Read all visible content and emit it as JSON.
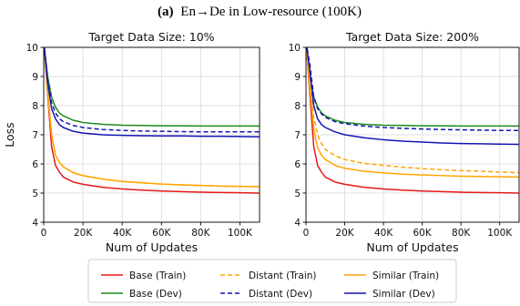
{
  "figure": {
    "caption_label": "(a)",
    "caption_text": "En→De in Low-resource (100K)"
  },
  "chart_data": [
    {
      "type": "line",
      "title": "Target Data Size: 10%",
      "xlabel": "Num of Updates",
      "ylabel": "Loss",
      "xlim": [
        0,
        110000
      ],
      "ylim": [
        4,
        10
      ],
      "xticks": [
        0,
        20000,
        40000,
        60000,
        80000,
        100000
      ],
      "xtick_labels": [
        "0",
        "20K",
        "40K",
        "60K",
        "80K",
        "100K"
      ],
      "yticks": [
        4,
        5,
        6,
        7,
        8,
        9,
        10
      ],
      "ytick_labels": [
        "4",
        "5",
        "6",
        "7",
        "8",
        "9",
        "10"
      ],
      "grid": true,
      "series": [
        {
          "name": "Base (Train)",
          "color": "#e41a1c",
          "dash": "solid",
          "x": [
            0,
            2000,
            4000,
            6000,
            8000,
            10000,
            15000,
            20000,
            30000,
            40000,
            50000,
            60000,
            70000,
            80000,
            90000,
            100000,
            110000
          ],
          "y": [
            10.2,
            8.4,
            6.6,
            5.95,
            5.72,
            5.55,
            5.38,
            5.3,
            5.2,
            5.14,
            5.1,
            5.07,
            5.05,
            5.03,
            5.02,
            5.01,
            5.0
          ]
        },
        {
          "name": "Base (Dev)",
          "color": "#1a8a1a",
          "dash": "solid",
          "x": [
            0,
            2000,
            4000,
            6000,
            8000,
            10000,
            15000,
            20000,
            30000,
            40000,
            50000,
            60000,
            70000,
            80000,
            90000,
            100000,
            110000
          ],
          "y": [
            10.2,
            9.0,
            8.3,
            7.95,
            7.75,
            7.65,
            7.5,
            7.42,
            7.36,
            7.33,
            7.32,
            7.31,
            7.31,
            7.3,
            7.3,
            7.3,
            7.3
          ]
        },
        {
          "name": "Distant (Train)",
          "color": "#ffa500",
          "dash": "dashed",
          "x": [
            0,
            2000,
            4000,
            6000,
            8000,
            10000,
            15000,
            20000,
            30000,
            40000,
            50000,
            60000,
            70000,
            80000,
            90000,
            100000,
            110000
          ],
          "y": [
            10.2,
            8.5,
            7.0,
            6.3,
            6.05,
            5.9,
            5.7,
            5.6,
            5.48,
            5.4,
            5.35,
            5.31,
            5.28,
            5.26,
            5.24,
            5.23,
            5.22
          ]
        },
        {
          "name": "Distant (Dev)",
          "color": "#1414b4",
          "dash": "dashed",
          "x": [
            0,
            2000,
            4000,
            6000,
            8000,
            10000,
            15000,
            20000,
            30000,
            40000,
            50000,
            60000,
            70000,
            80000,
            90000,
            100000,
            110000
          ],
          "y": [
            10.2,
            8.9,
            8.1,
            7.75,
            7.55,
            7.45,
            7.32,
            7.25,
            7.18,
            7.15,
            7.13,
            7.12,
            7.11,
            7.1,
            7.1,
            7.1,
            7.1
          ]
        },
        {
          "name": "Similar (Train)",
          "color": "#ffa500",
          "dash": "solid",
          "x": [
            0,
            2000,
            4000,
            6000,
            8000,
            10000,
            15000,
            20000,
            30000,
            40000,
            50000,
            60000,
            70000,
            80000,
            90000,
            100000,
            110000
          ],
          "y": [
            10.2,
            8.5,
            7.0,
            6.3,
            6.05,
            5.9,
            5.7,
            5.6,
            5.48,
            5.4,
            5.35,
            5.31,
            5.28,
            5.26,
            5.24,
            5.23,
            5.22
          ]
        },
        {
          "name": "Similar (Dev)",
          "color": "#1414b4",
          "dash": "solid",
          "x": [
            0,
            2000,
            4000,
            6000,
            8000,
            10000,
            15000,
            20000,
            30000,
            40000,
            50000,
            60000,
            70000,
            80000,
            90000,
            100000,
            110000
          ],
          "y": [
            10.2,
            8.8,
            7.9,
            7.55,
            7.35,
            7.25,
            7.12,
            7.06,
            7.0,
            6.98,
            6.97,
            6.96,
            6.96,
            6.95,
            6.95,
            6.94,
            6.93
          ]
        }
      ]
    },
    {
      "type": "line",
      "title": "Target Data Size: 200%",
      "xlabel": "Num of Updates",
      "ylabel": "",
      "xlim": [
        0,
        110000
      ],
      "ylim": [
        4,
        10
      ],
      "xticks": [
        0,
        20000,
        40000,
        60000,
        80000,
        100000
      ],
      "xtick_labels": [
        "0",
        "20K",
        "40K",
        "60K",
        "80K",
        "100K"
      ],
      "yticks": [
        4,
        5,
        6,
        7,
        8,
        9,
        10
      ],
      "ytick_labels": [
        "4",
        "5",
        "6",
        "7",
        "8",
        "9",
        "10"
      ],
      "grid": true,
      "series": [
        {
          "name": "Base (Train)",
          "color": "#e41a1c",
          "dash": "solid",
          "x": [
            0,
            2000,
            4000,
            6000,
            8000,
            10000,
            15000,
            20000,
            30000,
            40000,
            50000,
            60000,
            70000,
            80000,
            90000,
            100000,
            110000
          ],
          "y": [
            10.2,
            8.4,
            6.6,
            5.95,
            5.72,
            5.55,
            5.38,
            5.3,
            5.2,
            5.14,
            5.1,
            5.07,
            5.05,
            5.03,
            5.02,
            5.01,
            5.0
          ]
        },
        {
          "name": "Base (Dev)",
          "color": "#1a8a1a",
          "dash": "solid",
          "x": [
            0,
            2000,
            4000,
            6000,
            8000,
            10000,
            15000,
            20000,
            30000,
            40000,
            50000,
            60000,
            70000,
            80000,
            90000,
            100000,
            110000
          ],
          "y": [
            10.2,
            9.0,
            8.3,
            7.95,
            7.75,
            7.65,
            7.5,
            7.42,
            7.36,
            7.33,
            7.32,
            7.31,
            7.31,
            7.3,
            7.3,
            7.3,
            7.3
          ]
        },
        {
          "name": "Distant (Train)",
          "color": "#ffa500",
          "dash": "dashed",
          "x": [
            0,
            2000,
            4000,
            6000,
            8000,
            10000,
            15000,
            20000,
            30000,
            40000,
            50000,
            60000,
            70000,
            80000,
            90000,
            100000,
            110000
          ],
          "y": [
            10.2,
            8.8,
            7.6,
            7.0,
            6.7,
            6.5,
            6.28,
            6.15,
            6.02,
            5.95,
            5.89,
            5.84,
            5.8,
            5.77,
            5.75,
            5.72,
            5.7
          ]
        },
        {
          "name": "Distant (Dev)",
          "color": "#1414b4",
          "dash": "dashed",
          "x": [
            0,
            2000,
            4000,
            6000,
            8000,
            10000,
            15000,
            20000,
            30000,
            40000,
            50000,
            60000,
            70000,
            80000,
            90000,
            100000,
            110000
          ],
          "y": [
            10.2,
            9.4,
            8.3,
            7.9,
            7.72,
            7.6,
            7.45,
            7.38,
            7.3,
            7.25,
            7.22,
            7.2,
            7.18,
            7.17,
            7.16,
            7.15,
            7.15
          ]
        },
        {
          "name": "Similar (Train)",
          "color": "#ffa500",
          "dash": "solid",
          "x": [
            0,
            2000,
            4000,
            6000,
            8000,
            10000,
            15000,
            20000,
            30000,
            40000,
            50000,
            60000,
            70000,
            80000,
            90000,
            100000,
            110000
          ],
          "y": [
            10.2,
            8.6,
            7.2,
            6.55,
            6.3,
            6.15,
            5.95,
            5.85,
            5.75,
            5.69,
            5.65,
            5.62,
            5.6,
            5.58,
            5.57,
            5.56,
            5.55
          ]
        },
        {
          "name": "Similar (Dev)",
          "color": "#1414b4",
          "dash": "solid",
          "x": [
            0,
            2000,
            4000,
            6000,
            8000,
            10000,
            15000,
            20000,
            30000,
            40000,
            50000,
            60000,
            70000,
            80000,
            90000,
            100000,
            110000
          ],
          "y": [
            10.2,
            9.2,
            8.0,
            7.55,
            7.35,
            7.25,
            7.1,
            7.0,
            6.9,
            6.83,
            6.78,
            6.75,
            6.72,
            6.7,
            6.69,
            6.68,
            6.67
          ]
        }
      ]
    }
  ],
  "legend": {
    "placement": "bottom-center",
    "items": [
      {
        "label": "Base (Train)",
        "color": "#e41a1c",
        "dash": "solid"
      },
      {
        "label": "Distant (Train)",
        "color": "#ffa500",
        "dash": "dashed"
      },
      {
        "label": "Similar (Train)",
        "color": "#ffa500",
        "dash": "solid"
      },
      {
        "label": "Base (Dev)",
        "color": "#1a8a1a",
        "dash": "solid"
      },
      {
        "label": "Distant (Dev)",
        "color": "#1414b4",
        "dash": "dashed"
      },
      {
        "label": "Similar (Dev)",
        "color": "#1414b4",
        "dash": "solid"
      }
    ]
  }
}
